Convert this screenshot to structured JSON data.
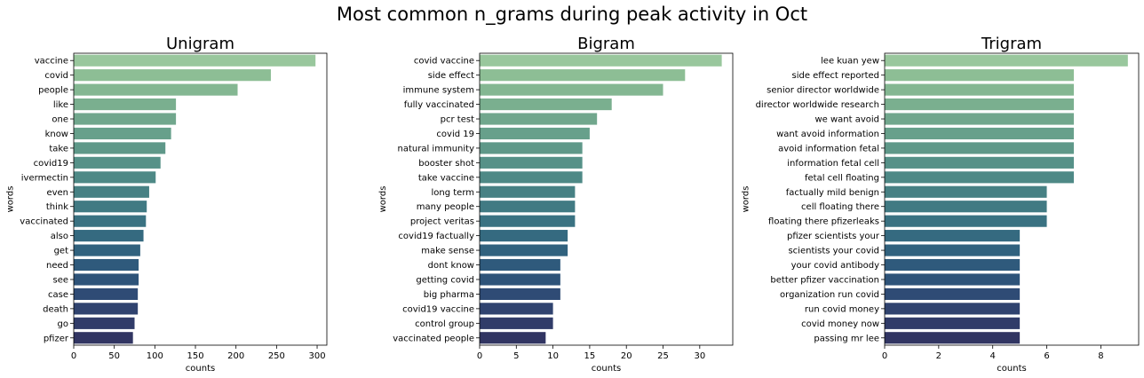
{
  "title": "Most common n_grams during peak activity in Oct",
  "chart_data": [
    {
      "type": "bar",
      "orientation": "horizontal",
      "title": "Unigram",
      "xlabel": "counts",
      "ylabel": "words",
      "xlim": [
        0,
        312
      ],
      "xticks": [
        0,
        50,
        100,
        150,
        200,
        250,
        300
      ],
      "categories": [
        "vaccine",
        "covid",
        "people",
        "like",
        "one",
        "know",
        "take",
        "covid19",
        "ivermectin",
        "even",
        "think",
        "vaccinated",
        "also",
        "get",
        "need",
        "see",
        "case",
        "death",
        "go",
        "pfizer"
      ],
      "values": [
        298,
        243,
        202,
        126,
        126,
        120,
        113,
        107,
        101,
        93,
        90,
        89,
        86,
        82,
        80,
        80,
        79,
        79,
        75,
        73
      ]
    },
    {
      "type": "bar",
      "orientation": "horizontal",
      "title": "Bigram",
      "xlabel": "counts",
      "ylabel": "words",
      "xlim": [
        0,
        34.5
      ],
      "xticks": [
        0,
        5,
        10,
        15,
        20,
        25,
        30
      ],
      "categories": [
        "covid vaccine",
        "side effect",
        "immune system",
        "fully vaccinated",
        "pcr test",
        "covid 19",
        "natural immunity",
        "booster shot",
        "take vaccine",
        "long term",
        "many people",
        "project veritas",
        "covid19 factually",
        "make sense",
        "dont know",
        "getting covid",
        "big pharma",
        "covid19 vaccine",
        "control group",
        "vaccinated people"
      ],
      "values": [
        33,
        28,
        25,
        18,
        16,
        15,
        14,
        14,
        14,
        13,
        13,
        13,
        12,
        12,
        11,
        11,
        11,
        10,
        10,
        9
      ]
    },
    {
      "type": "bar",
      "orientation": "horizontal",
      "title": "Trigram",
      "xlabel": "counts",
      "ylabel": "words",
      "xlim": [
        0,
        9.4
      ],
      "xticks": [
        0,
        2,
        4,
        6,
        8
      ],
      "categories": [
        "lee kuan yew",
        "side effect reported",
        "senior director worldwide",
        "director worldwide research",
        "we want avoid",
        "want avoid information",
        "avoid information fetal",
        "information fetal cell",
        "fetal cell floating",
        "factually mild benign",
        "cell floating there",
        "floating there pfizerleaks",
        "pfizer scientists your",
        "scientists your covid",
        "your covid antibody",
        "better pfizer vaccination",
        "organization run covid",
        "run covid money",
        "covid money now",
        "passing mr lee"
      ],
      "values": [
        9,
        7,
        7,
        7,
        7,
        7,
        7,
        7,
        7,
        6,
        6,
        6,
        5,
        5,
        5,
        5,
        5,
        5,
        5,
        5
      ]
    }
  ],
  "palette": [
    "#99c79d",
    "#8dbe95",
    "#84b792",
    "#7aaf8f",
    "#71a78d",
    "#67a08b",
    "#5f9889",
    "#569188",
    "#4e8986",
    "#478184",
    "#417a83",
    "#3a7282",
    "#356a80",
    "#31627e",
    "#2f5a7c",
    "#2e5379",
    "#2f4b75",
    "#30436f",
    "#313c69",
    "#313562"
  ]
}
